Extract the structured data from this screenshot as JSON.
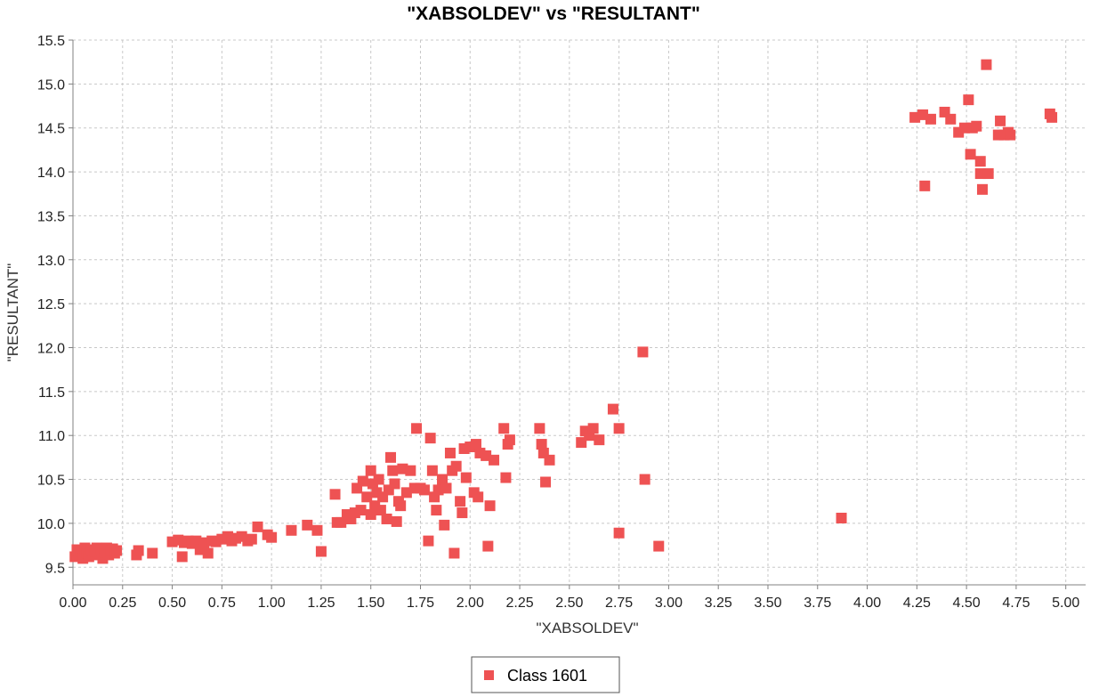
{
  "chart_data": {
    "type": "scatter",
    "title": "\"XABSOLDEV\" vs \"RESULTANT\"",
    "xlabel": "\"XABSOLDEV\"",
    "ylabel": "\"RESULTANT\"",
    "xlim": [
      0,
      5.1
    ],
    "ylim": [
      9.3,
      15.5
    ],
    "grid": true,
    "legend_position": "bottom-center",
    "x_ticks": [
      "0.00",
      "0.25",
      "0.50",
      "0.75",
      "1.00",
      "1.25",
      "1.50",
      "1.75",
      "2.00",
      "2.25",
      "2.50",
      "2.75",
      "3.00",
      "3.25",
      "3.50",
      "3.75",
      "4.00",
      "4.25",
      "4.50",
      "4.75",
      "5.00"
    ],
    "y_ticks": [
      "9.5",
      "10.0",
      "10.5",
      "11.0",
      "11.5",
      "12.0",
      "12.5",
      "13.0",
      "13.5",
      "14.0",
      "14.5",
      "15.0",
      "15.5"
    ],
    "series": [
      {
        "name": "Class 1601",
        "color": "#ee5253",
        "points": [
          [
            0.01,
            9.62
          ],
          [
            0.02,
            9.7
          ],
          [
            0.03,
            9.64
          ],
          [
            0.04,
            9.68
          ],
          [
            0.05,
            9.6
          ],
          [
            0.06,
            9.72
          ],
          [
            0.07,
            9.66
          ],
          [
            0.08,
            9.62
          ],
          [
            0.09,
            9.7
          ],
          [
            0.1,
            9.64
          ],
          [
            0.11,
            9.68
          ],
          [
            0.12,
            9.72
          ],
          [
            0.13,
            9.65
          ],
          [
            0.14,
            9.7
          ],
          [
            0.15,
            9.6
          ],
          [
            0.16,
            9.67
          ],
          [
            0.17,
            9.72
          ],
          [
            0.18,
            9.64
          ],
          [
            0.19,
            9.69
          ],
          [
            0.2,
            9.71
          ],
          [
            0.21,
            9.66
          ],
          [
            0.22,
            9.69
          ],
          [
            0.32,
            9.64
          ],
          [
            0.33,
            9.69
          ],
          [
            0.4,
            9.66
          ],
          [
            0.5,
            9.79
          ],
          [
            0.53,
            9.81
          ],
          [
            0.55,
            9.62
          ],
          [
            0.56,
            9.78
          ],
          [
            0.58,
            9.8
          ],
          [
            0.6,
            9.77
          ],
          [
            0.62,
            9.8
          ],
          [
            0.64,
            9.7
          ],
          [
            0.66,
            9.78
          ],
          [
            0.68,
            9.66
          ],
          [
            0.7,
            9.8
          ],
          [
            0.72,
            9.79
          ],
          [
            0.75,
            9.82
          ],
          [
            0.78,
            9.85
          ],
          [
            0.8,
            9.8
          ],
          [
            0.82,
            9.83
          ],
          [
            0.85,
            9.85
          ],
          [
            0.88,
            9.8
          ],
          [
            0.9,
            9.82
          ],
          [
            0.93,
            9.96
          ],
          [
            0.98,
            9.87
          ],
          [
            1.0,
            9.84
          ],
          [
            1.1,
            9.92
          ],
          [
            1.18,
            9.98
          ],
          [
            1.23,
            9.92
          ],
          [
            1.25,
            9.68
          ],
          [
            1.32,
            10.33
          ],
          [
            1.33,
            10.01
          ],
          [
            1.35,
            10.01
          ],
          [
            1.38,
            10.1
          ],
          [
            1.4,
            10.05
          ],
          [
            1.42,
            10.12
          ],
          [
            1.43,
            10.4
          ],
          [
            1.45,
            10.15
          ],
          [
            1.46,
            10.48
          ],
          [
            1.48,
            10.3
          ],
          [
            1.5,
            10.6
          ],
          [
            1.5,
            10.1
          ],
          [
            1.51,
            10.45
          ],
          [
            1.52,
            10.2
          ],
          [
            1.53,
            10.35
          ],
          [
            1.54,
            10.5
          ],
          [
            1.55,
            10.15
          ],
          [
            1.56,
            10.3
          ],
          [
            1.58,
            10.05
          ],
          [
            1.59,
            10.38
          ],
          [
            1.6,
            10.75
          ],
          [
            1.61,
            10.6
          ],
          [
            1.62,
            10.45
          ],
          [
            1.63,
            10.02
          ],
          [
            1.64,
            10.25
          ],
          [
            1.65,
            10.2
          ],
          [
            1.66,
            10.62
          ],
          [
            1.68,
            10.35
          ],
          [
            1.7,
            10.6
          ],
          [
            1.72,
            10.4
          ],
          [
            1.73,
            11.08
          ],
          [
            1.75,
            10.4
          ],
          [
            1.77,
            10.38
          ],
          [
            1.79,
            9.8
          ],
          [
            1.8,
            10.97
          ],
          [
            1.81,
            10.6
          ],
          [
            1.82,
            10.3
          ],
          [
            1.83,
            10.15
          ],
          [
            1.84,
            10.38
          ],
          [
            1.86,
            10.5
          ],
          [
            1.87,
            9.98
          ],
          [
            1.88,
            10.4
          ],
          [
            1.9,
            10.8
          ],
          [
            1.91,
            10.6
          ],
          [
            1.92,
            9.66
          ],
          [
            1.93,
            10.65
          ],
          [
            1.95,
            10.25
          ],
          [
            1.96,
            10.12
          ],
          [
            1.97,
            10.85
          ],
          [
            1.98,
            10.52
          ],
          [
            2.0,
            10.87
          ],
          [
            2.02,
            10.35
          ],
          [
            2.03,
            10.9
          ],
          [
            2.04,
            10.3
          ],
          [
            2.05,
            10.8
          ],
          [
            2.08,
            10.77
          ],
          [
            2.09,
            9.74
          ],
          [
            2.1,
            10.2
          ],
          [
            2.12,
            10.72
          ],
          [
            2.17,
            11.08
          ],
          [
            2.18,
            10.52
          ],
          [
            2.19,
            10.9
          ],
          [
            2.2,
            10.95
          ],
          [
            2.35,
            11.08
          ],
          [
            2.36,
            10.9
          ],
          [
            2.37,
            10.8
          ],
          [
            2.38,
            10.47
          ],
          [
            2.4,
            10.72
          ],
          [
            2.56,
            10.92
          ],
          [
            2.58,
            11.05
          ],
          [
            2.6,
            11.0
          ],
          [
            2.62,
            11.08
          ],
          [
            2.65,
            10.95
          ],
          [
            2.72,
            11.3
          ],
          [
            2.75,
            11.08
          ],
          [
            2.75,
            9.89
          ],
          [
            2.87,
            11.95
          ],
          [
            2.88,
            10.5
          ],
          [
            2.95,
            9.74
          ],
          [
            3.87,
            10.06
          ],
          [
            4.24,
            14.62
          ],
          [
            4.28,
            14.65
          ],
          [
            4.29,
            13.84
          ],
          [
            4.32,
            14.6
          ],
          [
            4.39,
            14.68
          ],
          [
            4.42,
            14.6
          ],
          [
            4.46,
            14.45
          ],
          [
            4.49,
            14.5
          ],
          [
            4.51,
            14.82
          ],
          [
            4.52,
            14.2
          ],
          [
            4.53,
            14.5
          ],
          [
            4.55,
            14.52
          ],
          [
            4.57,
            14.12
          ],
          [
            4.57,
            13.98
          ],
          [
            4.58,
            13.8
          ],
          [
            4.6,
            15.22
          ],
          [
            4.61,
            13.98
          ],
          [
            4.66,
            14.42
          ],
          [
            4.67,
            14.58
          ],
          [
            4.69,
            14.42
          ],
          [
            4.71,
            14.45
          ],
          [
            4.72,
            14.42
          ],
          [
            4.92,
            14.66
          ],
          [
            4.93,
            14.62
          ]
        ]
      }
    ]
  }
}
